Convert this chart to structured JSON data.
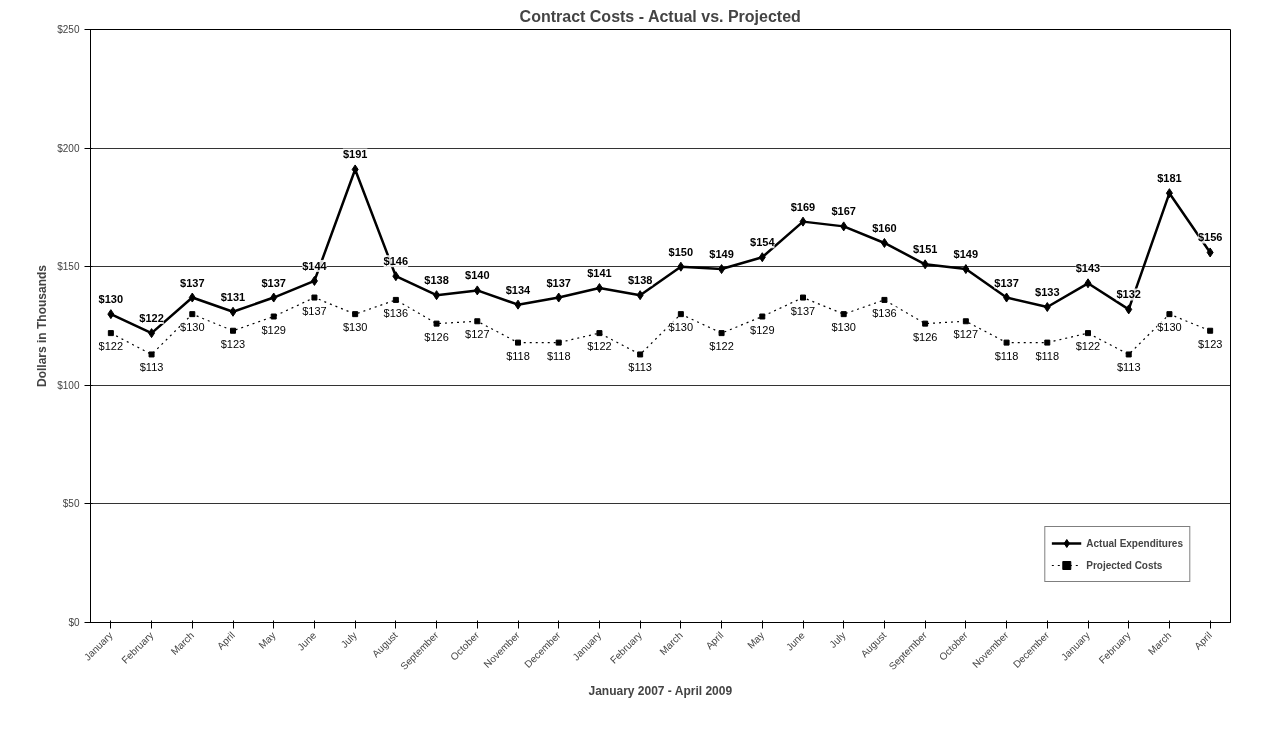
{
  "chart_data": {
    "type": "line",
    "title": "Contract Costs - Actual vs. Projected",
    "xlabel": "January 2007 - April 2009",
    "ylabel": "Dollars in Thousands",
    "categories": [
      "January",
      "February",
      "March",
      "April",
      "May",
      "June",
      "July",
      "August",
      "September",
      "October",
      "November",
      "December",
      "January",
      "February",
      "March",
      "April",
      "May",
      "June",
      "July",
      "August",
      "September",
      "October",
      "November",
      "December",
      "January",
      "February",
      "March",
      "April"
    ],
    "series": [
      {
        "name": "Actual Expenditures",
        "color": "#000000",
        "marker": "diamond",
        "line_style": "solid",
        "values": [
          130,
          122,
          137,
          131,
          137,
          144,
          191,
          146,
          138,
          140,
          134,
          137,
          141,
          138,
          150,
          149,
          154,
          169,
          167,
          160,
          151,
          149,
          137,
          133,
          143,
          132,
          181,
          156
        ],
        "value_labels": [
          "$130",
          "$122",
          "$137",
          "$131",
          "$137",
          "$144",
          "$191",
          "$146",
          "$138",
          "$140",
          "$134",
          "$137",
          "$141",
          "$138",
          "$150",
          "$149",
          "$154",
          "$169",
          "$167",
          "$160",
          "$151",
          "$149",
          "$137",
          "$133",
          "$143",
          "$132",
          "$181",
          "$156"
        ]
      },
      {
        "name": "Projected Costs",
        "color": "#000000",
        "marker": "square",
        "line_style": "dotted",
        "values": [
          122,
          113,
          130,
          123,
          129,
          137,
          130,
          136,
          126,
          127,
          118,
          118,
          122,
          113,
          130,
          122,
          129,
          137,
          130,
          136,
          126,
          127,
          118,
          118,
          122,
          113,
          130,
          123
        ],
        "value_labels": [
          "$122",
          "$113",
          "$130",
          "$123",
          "$129",
          "$137",
          "$130",
          "$136",
          "$126",
          "$127",
          "$118",
          "$118",
          "$122",
          "$113",
          "$130",
          "$122",
          "$129",
          "$137",
          "$130",
          "$136",
          "$126",
          "$127",
          "$118",
          "$118",
          "$122",
          "$113",
          "$130",
          "$123"
        ]
      }
    ],
    "ylim": [
      0,
      250
    ],
    "yticks": [
      {
        "value": 0,
        "label": "$0"
      },
      {
        "value": 50,
        "label": "$50"
      },
      {
        "value": 100,
        "label": "$100"
      },
      {
        "value": 150,
        "label": "$150"
      },
      {
        "value": 200,
        "label": "$200"
      },
      {
        "value": 250,
        "label": "$250"
      }
    ],
    "grid": "y",
    "legend": "bottom right"
  }
}
